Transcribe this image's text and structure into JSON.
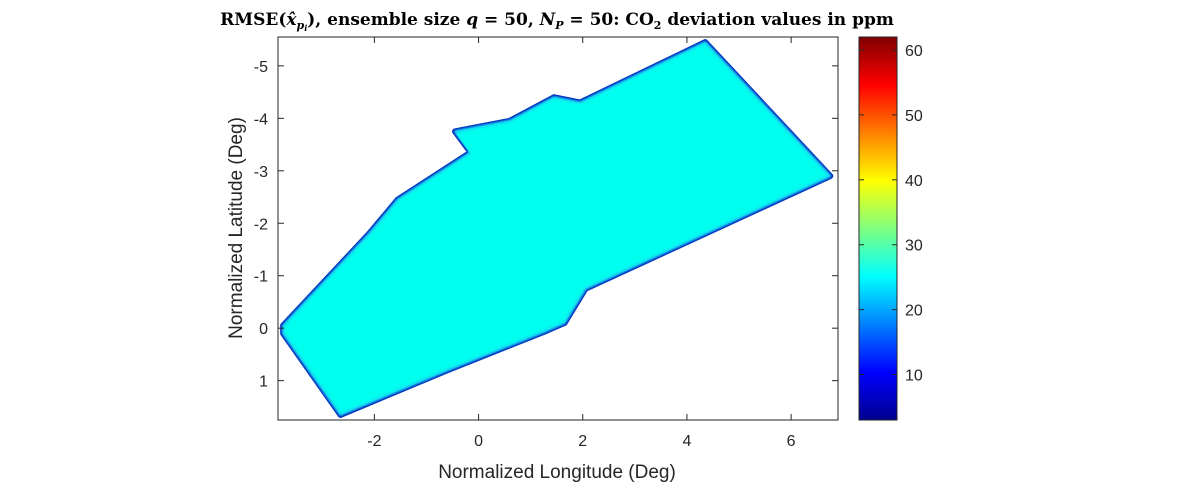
{
  "chart_data": {
    "type": "heatmap",
    "title": "RMSE(x̂ₚᵢ), ensemble size q = 50, Nₚ = 50: CO₂ deviation values in ppm",
    "title_parts": {
      "a": "RMSE(",
      "xhat": "x̂",
      "xsub": "p",
      "xsubsub": "i",
      "b": "), ensemble size ",
      "q": "q",
      "c": " = 50, ",
      "N": "N",
      "Nsub": "P",
      "d": " = 50:  CO",
      "two": "2",
      "e": " deviation values in ppm"
    },
    "xlabel": "Normalized Longitude (Deg)",
    "ylabel": "Normalized Latitude (Deg)",
    "xlim": [
      -3.85,
      6.9
    ],
    "ylim": [
      -5.55,
      1.75
    ],
    "y_reversed": true,
    "xticks": [
      -2,
      0,
      2,
      4,
      6
    ],
    "xtick_labels": [
      "-2",
      "0",
      "2",
      "4",
      "6"
    ],
    "yticks": [
      -5,
      -4,
      -3,
      -2,
      -1,
      0,
      1
    ],
    "ytick_labels": [
      "-5",
      "-4",
      "-3",
      "-2",
      "-1",
      "0",
      "1"
    ],
    "grid": false,
    "colormap": "jet",
    "clim": [
      3,
      62
    ],
    "colorbar_ticks": [
      10,
      20,
      30,
      40,
      50,
      60
    ],
    "colorbar_tick_labels": [
      "10",
      "20",
      "30",
      "40",
      "50",
      "60"
    ],
    "interior_value": 23,
    "boundary_value": 5,
    "interior_color": "#00ffee",
    "boundary_color": "#0000b0",
    "region_outline": [
      {
        "x": -3.75,
        "y": 0.1
      },
      {
        "x": -2.65,
        "y": 1.65
      },
      {
        "x": -0.6,
        "y": 0.8
      },
      {
        "x": 1.3,
        "y": 0.05
      },
      {
        "x": 1.65,
        "y": -0.1
      },
      {
        "x": 2.05,
        "y": -0.75
      },
      {
        "x": 6.75,
        "y": -2.9
      },
      {
        "x": 4.35,
        "y": -5.45
      },
      {
        "x": 1.95,
        "y": -4.3
      },
      {
        "x": 1.45,
        "y": -4.4
      },
      {
        "x": 0.6,
        "y": -3.95
      },
      {
        "x": -0.45,
        "y": -3.75
      },
      {
        "x": -0.15,
        "y": -3.35
      },
      {
        "x": -1.55,
        "y": -2.45
      },
      {
        "x": -2.1,
        "y": -1.8
      },
      {
        "x": -3.75,
        "y": -0.05
      }
    ]
  }
}
